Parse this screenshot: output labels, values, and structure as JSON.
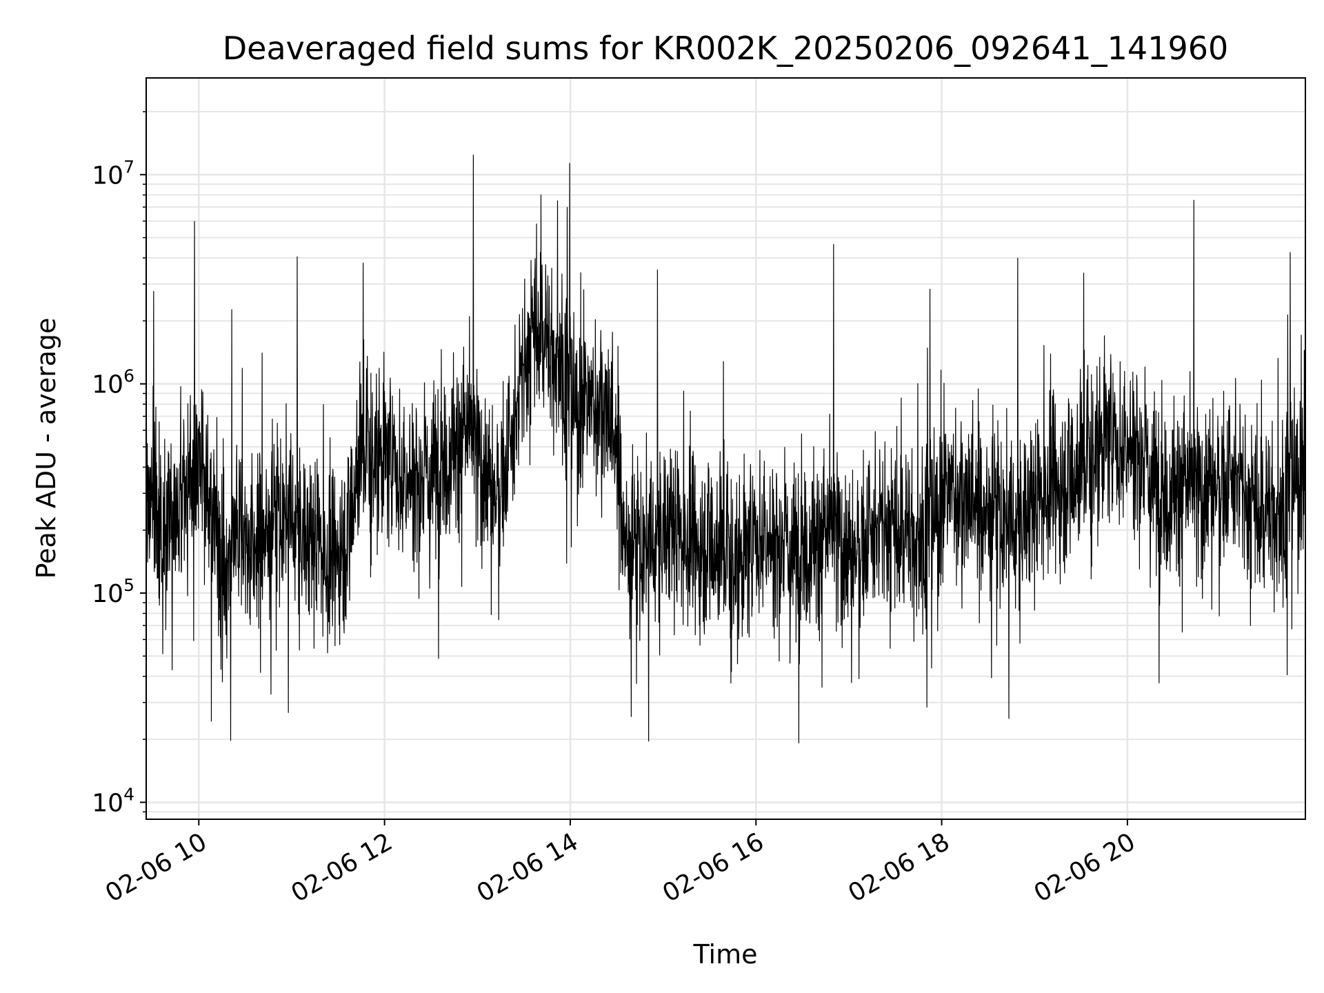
{
  "chart_data": {
    "type": "line",
    "title": "Deaveraged field sums for KR002K_20250206_092641_141960",
    "xlabel": "Time",
    "ylabel": "Peak ADU - average",
    "yscale": "log",
    "xlim": [
      "02-06 09:26",
      "02-06 21:55"
    ],
    "ylim": [
      8300,
      29000000
    ],
    "grid": true,
    "line_color": "#000000",
    "x_ticks": [
      {
        "label": "02-06 10",
        "hour": 10
      },
      {
        "label": "02-06 12",
        "hour": 12
      },
      {
        "label": "02-06 14",
        "hour": 14
      },
      {
        "label": "02-06 16",
        "hour": 16
      },
      {
        "label": "02-06 18",
        "hour": 18
      },
      {
        "label": "02-06 20",
        "hour": 20
      }
    ],
    "y_ticks": [
      {
        "base": "10",
        "exp": "4",
        "value": 10000
      },
      {
        "base": "10",
        "exp": "5",
        "value": 100000
      },
      {
        "base": "10",
        "exp": "6",
        "value": 1000000
      },
      {
        "base": "10",
        "exp": "7",
        "value": 10000000
      }
    ],
    "series": [
      {
        "x": [
          "09:26",
          "09:30",
          "09:36",
          "09:42",
          "09:48",
          "09:54",
          "10:00",
          "10:06",
          "10:12",
          "10:18",
          "10:24",
          "10:30",
          "10:36",
          "10:42",
          "10:48",
          "10:54",
          "11:00",
          "11:06",
          "11:12",
          "11:18",
          "11:24",
          "11:30",
          "11:36",
          "11:42",
          "11:48",
          "11:54",
          "12:00",
          "12:06",
          "12:12",
          "12:18",
          "12:24",
          "12:30",
          "12:36",
          "12:42",
          "12:48",
          "12:54",
          "13:00",
          "13:06",
          "13:12",
          "13:18",
          "13:24",
          "13:30",
          "13:36",
          "13:42",
          "13:48",
          "13:54",
          "14:00",
          "14:06",
          "14:12",
          "14:18",
          "14:24",
          "14:30",
          "14:36",
          "14:42",
          "14:48",
          "14:54",
          "15:00",
          "15:06",
          "15:12",
          "15:18",
          "15:24",
          "15:30",
          "15:36",
          "15:42",
          "15:48",
          "15:54",
          "16:00",
          "16:06",
          "16:12",
          "16:18",
          "16:24",
          "16:30",
          "16:36",
          "16:42",
          "16:48",
          "16:54",
          "17:00",
          "17:06",
          "17:12",
          "17:18",
          "17:24",
          "17:30",
          "17:36",
          "17:42",
          "17:48",
          "17:54",
          "18:00",
          "18:06",
          "18:12",
          "18:18",
          "18:24",
          "18:30",
          "18:36",
          "18:42",
          "18:48",
          "18:54",
          "19:00",
          "19:06",
          "19:12",
          "19:18",
          "19:24",
          "19:30",
          "19:36",
          "19:42",
          "19:48",
          "19:54",
          "20:00",
          "20:06",
          "20:12",
          "20:18",
          "20:24",
          "20:30",
          "20:36",
          "20:42",
          "20:48",
          "20:54",
          "21:00",
          "21:06",
          "21:12",
          "21:18",
          "21:24",
          "21:30",
          "21:36",
          "21:42",
          "21:48",
          "21:55"
        ],
        "y": [
          300000,
          330000,
          210000,
          220000,
          260000,
          280000,
          560000,
          240000,
          200000,
          110000,
          260000,
          170000,
          150000,
          200000,
          210000,
          240000,
          220000,
          190000,
          180000,
          190000,
          130000,
          170000,
          180000,
          420000,
          520000,
          470000,
          450000,
          400000,
          340000,
          360000,
          330000,
          380000,
          450000,
          460000,
          520000,
          640000,
          460000,
          360000,
          300000,
          400000,
          560000,
          1200000,
          1700000,
          2000000,
          1300000,
          1400000,
          800000,
          740000,
          800000,
          830000,
          780000,
          460000,
          180000,
          150000,
          170000,
          160000,
          200000,
          220000,
          190000,
          180000,
          170000,
          180000,
          170000,
          160000,
          140000,
          150000,
          180000,
          190000,
          170000,
          170000,
          160000,
          180000,
          170000,
          180000,
          210000,
          180000,
          150000,
          170000,
          180000,
          180000,
          210000,
          190000,
          220000,
          170000,
          200000,
          210000,
          260000,
          320000,
          300000,
          290000,
          250000,
          260000,
          230000,
          220000,
          190000,
          240000,
          280000,
          310000,
          350000,
          330000,
          380000,
          420000,
          480000,
          520000,
          560000,
          480000,
          520000,
          500000,
          400000,
          350000,
          310000,
          300000,
          340000,
          330000,
          290000,
          350000,
          340000,
          330000,
          320000,
          260000,
          250000,
          260000,
          230000,
          280000,
          340000,
          400000
        ]
      }
    ]
  }
}
